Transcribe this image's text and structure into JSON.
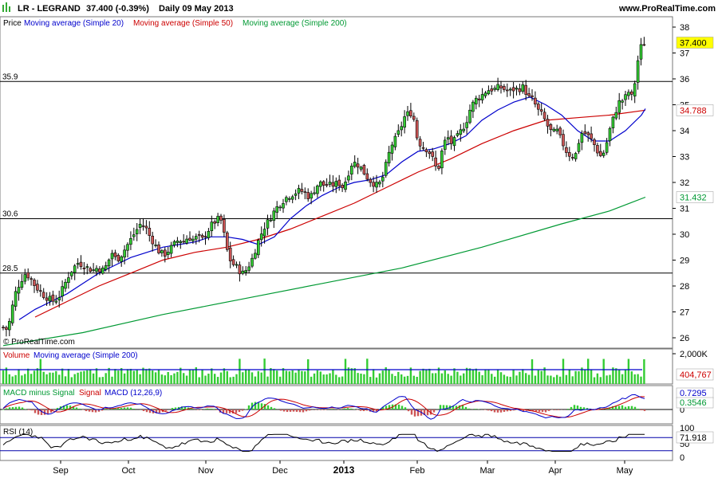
{
  "header": {
    "symbol_name": "LR - LEGRAND",
    "last": "37.400 (-0.39%)",
    "period": "Daily  09 May 2013",
    "site": "www.ProRealTime.com"
  },
  "copyright": "© ProRealTime.com",
  "colors": {
    "up": "#33cc33",
    "down": "#cc5555",
    "ma20": "#0000cc",
    "ma50": "#cc0000",
    "ma200": "#009933",
    "volume_bar": "#33cc33",
    "macd_line": "#0000cc",
    "signal_line": "#cc0000",
    "rsi_line": "#000000"
  },
  "chart_data": [
    {
      "type": "candlestick",
      "title": "Price",
      "legend": [
        "Price",
        "Moving average (Simple 20)",
        "Moving average (Simple 50)",
        "Moving average (Simple 200)"
      ],
      "ylim": [
        25.6,
        38.4
      ],
      "y_ticks": [
        "26",
        "27",
        "28",
        "29",
        "30",
        "31",
        "32",
        "33",
        "34",
        "35",
        "36",
        "37",
        "38"
      ],
      "x_labels": [
        "Sep",
        "Oct",
        "Nov",
        "Dec",
        "2013",
        "Feb",
        "Mar",
        "Apr",
        "May"
      ],
      "horizontal_lines": [
        {
          "label": "35.9",
          "value": 35.9
        },
        {
          "label": "30.6",
          "value": 30.6
        },
        {
          "label": "28.5",
          "value": 28.5
        }
      ],
      "value_tags": [
        {
          "label": "37.400",
          "value": 37.4,
          "color": "#ffff00",
          "text_color": "#000000"
        },
        {
          "label": "34.788",
          "value": 34.788,
          "color": "#ffffff",
          "text_color": "#cc0000"
        },
        {
          "label": "31.432",
          "value": 31.432,
          "color": "#ffffff",
          "text_color": "#009933"
        }
      ],
      "price_path": [
        [
          0,
          26.4
        ],
        [
          6,
          26.3
        ],
        [
          10,
          27.0
        ],
        [
          16,
          27.8
        ],
        [
          22,
          28.2
        ],
        [
          28,
          28.5
        ],
        [
          34,
          28.3
        ],
        [
          40,
          28.0
        ],
        [
          46,
          27.8
        ],
        [
          52,
          27.6
        ],
        [
          58,
          27.5
        ],
        [
          64,
          27.4
        ],
        [
          70,
          27.6
        ],
        [
          76,
          28.0
        ],
        [
          82,
          28.4
        ],
        [
          88,
          28.7
        ],
        [
          94,
          28.9
        ],
        [
          100,
          28.8
        ],
        [
          106,
          28.7
        ],
        [
          112,
          28.6
        ],
        [
          118,
          28.7
        ],
        [
          124,
          28.6
        ],
        [
          130,
          28.8
        ],
        [
          136,
          29.3
        ],
        [
          142,
          29.0
        ],
        [
          148,
          29.2
        ],
        [
          154,
          29.5
        ],
        [
          160,
          29.8
        ],
        [
          166,
          30.1
        ],
        [
          172,
          30.4
        ],
        [
          178,
          30.3
        ],
        [
          184,
          29.9
        ],
        [
          190,
          29.6
        ],
        [
          196,
          29.3
        ],
        [
          202,
          29.2
        ],
        [
          208,
          29.4
        ],
        [
          214,
          29.6
        ],
        [
          220,
          29.8
        ],
        [
          226,
          29.7
        ],
        [
          232,
          29.9
        ],
        [
          238,
          29.8
        ],
        [
          244,
          29.9
        ],
        [
          250,
          29.8
        ],
        [
          256,
          30.1
        ],
        [
          262,
          30.4
        ],
        [
          266,
          30.5
        ],
        [
          270,
          30.6
        ],
        [
          274,
          30.5
        ],
        [
          278,
          29.8
        ],
        [
          282,
          29.2
        ],
        [
          286,
          28.9
        ],
        [
          290,
          28.8
        ],
        [
          294,
          28.7
        ],
        [
          298,
          28.5
        ],
        [
          302,
          28.5
        ],
        [
          306,
          28.7
        ],
        [
          310,
          28.9
        ],
        [
          314,
          29.2
        ],
        [
          318,
          29.6
        ],
        [
          322,
          29.9
        ],
        [
          326,
          30.2
        ],
        [
          330,
          30.4
        ],
        [
          336,
          30.7
        ],
        [
          342,
          31.0
        ],
        [
          348,
          31.2
        ],
        [
          354,
          31.4
        ],
        [
          360,
          31.5
        ],
        [
          366,
          31.6
        ],
        [
          372,
          31.7
        ],
        [
          378,
          31.6
        ],
        [
          384,
          31.4
        ],
        [
          390,
          31.7
        ],
        [
          396,
          32.0
        ],
        [
          402,
          31.9
        ],
        [
          408,
          31.9
        ],
        [
          414,
          31.9
        ],
        [
          420,
          32.0
        ],
        [
          426,
          31.8
        ],
        [
          432,
          32.3
        ],
        [
          438,
          32.8
        ],
        [
          444,
          32.7
        ],
        [
          450,
          32.5
        ],
        [
          456,
          32.2
        ],
        [
          462,
          32.0
        ],
        [
          468,
          31.9
        ],
        [
          474,
          32.0
        ],
        [
          480,
          32.7
        ],
        [
          486,
          33.4
        ],
        [
          492,
          33.7
        ],
        [
          498,
          34.1
        ],
        [
          504,
          34.6
        ],
        [
          510,
          34.7
        ],
        [
          514,
          34.6
        ],
        [
          518,
          33.8
        ],
        [
          524,
          33.4
        ],
        [
          530,
          33.3
        ],
        [
          536,
          33.1
        ],
        [
          542,
          32.6
        ],
        [
          546,
          32.6
        ],
        [
          550,
          33.2
        ],
        [
          556,
          33.8
        ],
        [
          562,
          33.5
        ],
        [
          568,
          33.7
        ],
        [
          574,
          34.0
        ],
        [
          580,
          34.3
        ],
        [
          586,
          34.9
        ],
        [
          592,
          35.2
        ],
        [
          598,
          35.3
        ],
        [
          604,
          35.5
        ],
        [
          610,
          35.6
        ],
        [
          616,
          35.6
        ],
        [
          622,
          35.7
        ],
        [
          628,
          35.6
        ],
        [
          634,
          35.5
        ],
        [
          640,
          35.6
        ],
        [
          646,
          35.6
        ],
        [
          652,
          35.7
        ],
        [
          658,
          35.3
        ],
        [
          664,
          35.2
        ],
        [
          670,
          34.8
        ],
        [
          676,
          34.6
        ],
        [
          682,
          34.2
        ],
        [
          688,
          33.9
        ],
        [
          694,
          34.0
        ],
        [
          700,
          33.6
        ],
        [
          706,
          33.2
        ],
        [
          712,
          33.0
        ],
        [
          718,
          33.1
        ],
        [
          724,
          33.9
        ],
        [
          730,
          33.9
        ],
        [
          736,
          33.7
        ],
        [
          742,
          33.4
        ],
        [
          748,
          33.0
        ],
        [
          754,
          33.2
        ],
        [
          760,
          34.0
        ],
        [
          766,
          34.6
        ],
        [
          772,
          35.1
        ],
        [
          778,
          35.2
        ],
        [
          784,
          35.5
        ],
        [
          788,
          35.3
        ],
        [
          792,
          35.9
        ],
        [
          796,
          36.8
        ],
        [
          800,
          37.3
        ],
        [
          804,
          37.4
        ]
      ],
      "ma20_path": [
        [
          20,
          26.7
        ],
        [
          40,
          27.1
        ],
        [
          60,
          27.4
        ],
        [
          80,
          27.7
        ],
        [
          100,
          28.1
        ],
        [
          120,
          28.5
        ],
        [
          140,
          28.8
        ],
        [
          160,
          29.1
        ],
        [
          180,
          29.3
        ],
        [
          200,
          29.5
        ],
        [
          220,
          29.6
        ],
        [
          240,
          29.7
        ],
        [
          260,
          29.9
        ],
        [
          280,
          29.9
        ],
        [
          300,
          29.8
        ],
        [
          320,
          29.6
        ],
        [
          340,
          29.9
        ],
        [
          360,
          30.6
        ],
        [
          380,
          31.1
        ],
        [
          400,
          31.5
        ],
        [
          420,
          31.8
        ],
        [
          440,
          32.0
        ],
        [
          460,
          32.1
        ],
        [
          480,
          32.3
        ],
        [
          500,
          32.8
        ],
        [
          520,
          33.2
        ],
        [
          540,
          33.3
        ],
        [
          560,
          33.5
        ],
        [
          580,
          33.8
        ],
        [
          600,
          34.4
        ],
        [
          620,
          34.8
        ],
        [
          640,
          35.1
        ],
        [
          660,
          35.3
        ],
        [
          680,
          35.0
        ],
        [
          700,
          34.6
        ],
        [
          720,
          34.0
        ],
        [
          740,
          33.6
        ],
        [
          760,
          33.6
        ],
        [
          780,
          34.0
        ],
        [
          800,
          34.6
        ],
        [
          805,
          34.85
        ]
      ],
      "ma50_path": [
        [
          40,
          26.8
        ],
        [
          80,
          27.4
        ],
        [
          120,
          28.0
        ],
        [
          160,
          28.5
        ],
        [
          200,
          29.0
        ],
        [
          240,
          29.3
        ],
        [
          280,
          29.5
        ],
        [
          320,
          29.8
        ],
        [
          360,
          30.2
        ],
        [
          400,
          30.7
        ],
        [
          440,
          31.2
        ],
        [
          480,
          31.8
        ],
        [
          520,
          32.4
        ],
        [
          560,
          32.9
        ],
        [
          600,
          33.5
        ],
        [
          640,
          34.0
        ],
        [
          680,
          34.4
        ],
        [
          720,
          34.5
        ],
        [
          760,
          34.6
        ],
        [
          805,
          34.79
        ]
      ],
      "ma200_path": [
        [
          0,
          25.7
        ],
        [
          100,
          26.2
        ],
        [
          200,
          26.9
        ],
        [
          300,
          27.5
        ],
        [
          400,
          28.1
        ],
        [
          500,
          28.7
        ],
        [
          600,
          29.5
        ],
        [
          700,
          30.4
        ],
        [
          760,
          30.9
        ],
        [
          805,
          31.43
        ]
      ]
    },
    {
      "type": "bar",
      "title": "Volume",
      "legend": [
        "Volume",
        "Moving average (Simple 200)"
      ],
      "y_ticks": [
        "2,000K"
      ],
      "value_tags": [
        {
          "label": "404,767",
          "color": "#ffffff",
          "text_color": "#cc0000"
        }
      ]
    },
    {
      "type": "line",
      "title": "MACD minus Signal",
      "legend": [
        "MACD minus Signal",
        "Signal",
        "MACD (12,26,9)"
      ],
      "y_ticks": [
        "0"
      ],
      "value_tags": [
        {
          "label": "0.7295",
          "color": "#ffffff",
          "text_color": "#0000cc"
        },
        {
          "label": "0.3546",
          "color": "#ffffff",
          "text_color": "#009933"
        }
      ]
    },
    {
      "type": "line",
      "title": "RSI (14)",
      "y_ticks": [
        "100",
        "50",
        "0"
      ],
      "value_tags": [
        {
          "label": "71.918",
          "color": "#ffffff",
          "text_color": "#000000"
        }
      ]
    }
  ]
}
